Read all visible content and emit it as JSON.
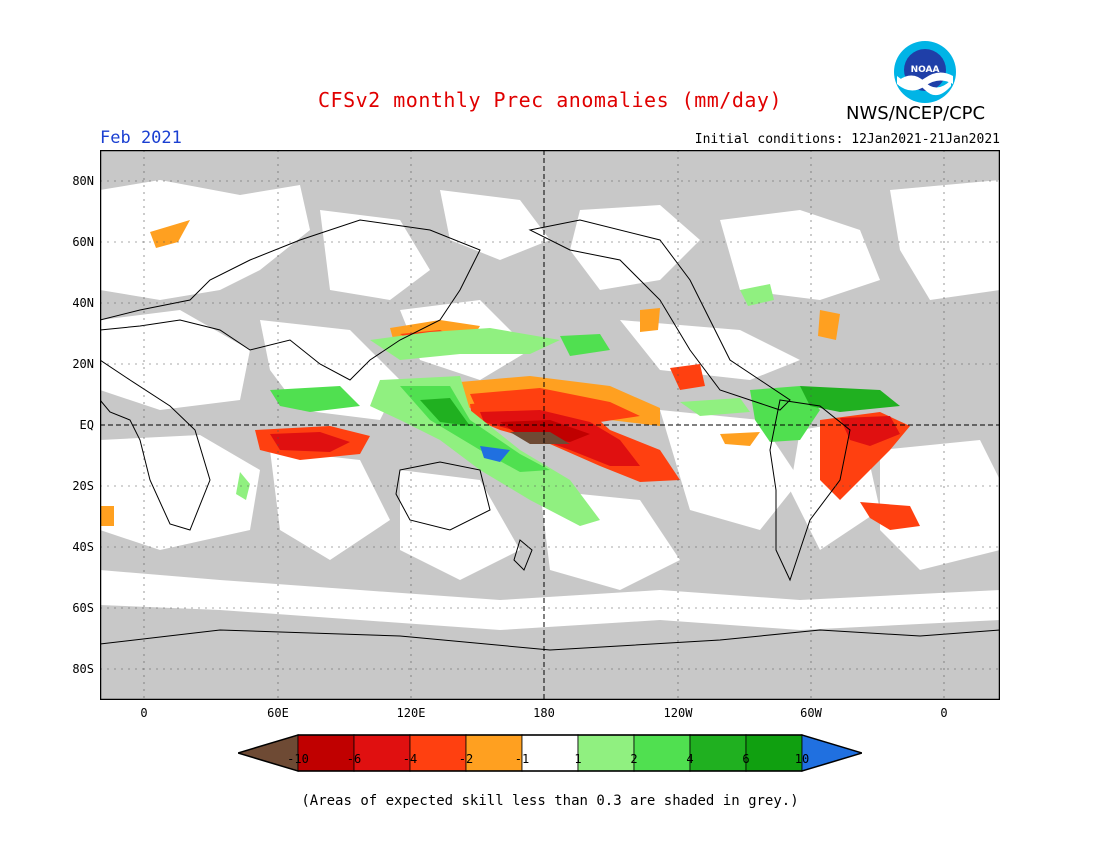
{
  "title": "CFSv2 monthly Prec anomalies (mm/day)",
  "org": "NWS/NCEP/CPC",
  "logo_text": "NOAA",
  "month": "Feb 2021",
  "initial_conditions": "Initial conditions: 12Jan2021-21Jan2021",
  "lat_labels": [
    "80N",
    "60N",
    "40N",
    "20N",
    "EQ",
    "20S",
    "40S",
    "60S",
    "80S"
  ],
  "lon_labels": [
    "0",
    "60E",
    "120E",
    "180",
    "120W",
    "60W",
    "0"
  ],
  "colorbar": {
    "labels": [
      "-10",
      "-6",
      "-4",
      "-2",
      "-1",
      "1",
      "2",
      "4",
      "6",
      "10"
    ],
    "colors": {
      "lt_m10": "#6e4a34",
      "m10_m6": "#c00000",
      "m6_m4": "#e01010",
      "m4_m2": "#ff4010",
      "m2_m1": "#ffa020",
      "m1_1": "#ffffff",
      "1_2": "#90f080",
      "2_4": "#50e050",
      "4_6": "#20b020",
      "6_10": "#10a010",
      "gt_10": "#2070e0"
    }
  },
  "skill_mask_color": "#c8c8c8",
  "note": "(Areas of expected skill less than 0.3 are shaded in grey.)"
}
